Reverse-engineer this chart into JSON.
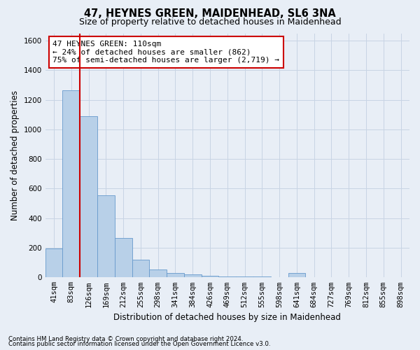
{
  "title": "47, HEYNES GREEN, MAIDENHEAD, SL6 3NA",
  "subtitle": "Size of property relative to detached houses in Maidenhead",
  "xlabel": "Distribution of detached houses by size in Maidenhead",
  "ylabel": "Number of detached properties",
  "footer_line1": "Contains HM Land Registry data © Crown copyright and database right 2024.",
  "footer_line2": "Contains public sector information licensed under the Open Government Licence v3.0.",
  "bar_values": [
    195,
    1265,
    1090,
    555,
    265,
    120,
    55,
    30,
    20,
    10,
    5,
    5,
    5,
    0,
    30,
    0,
    0,
    0,
    0,
    0,
    0
  ],
  "bar_labels": [
    "41sqm",
    "83sqm",
    "126sqm",
    "169sqm",
    "212sqm",
    "255sqm",
    "298sqm",
    "341sqm",
    "384sqm",
    "426sqm",
    "469sqm",
    "512sqm",
    "555sqm",
    "598sqm",
    "641sqm",
    "684sqm",
    "727sqm",
    "769sqm",
    "812sqm",
    "855sqm",
    "898sqm"
  ],
  "bar_color": "#b8d0e8",
  "bar_edge_color": "#6699cc",
  "vline_color": "#cc0000",
  "annotation_text": "47 HEYNES GREEN: 110sqm\n← 24% of detached houses are smaller (862)\n75% of semi-detached houses are larger (2,719) →",
  "annotation_box_color": "#ffffff",
  "annotation_box_edge": "#cc0000",
  "ylim": [
    0,
    1650
  ],
  "yticks": [
    0,
    200,
    400,
    600,
    800,
    1000,
    1200,
    1400,
    1600
  ],
  "grid_color": "#c8d4e4",
  "bg_color": "#e8eef6",
  "title_fontsize": 10.5,
  "subtitle_fontsize": 9,
  "axis_label_fontsize": 8.5,
  "tick_fontsize": 7.5,
  "annotation_fontsize": 8
}
